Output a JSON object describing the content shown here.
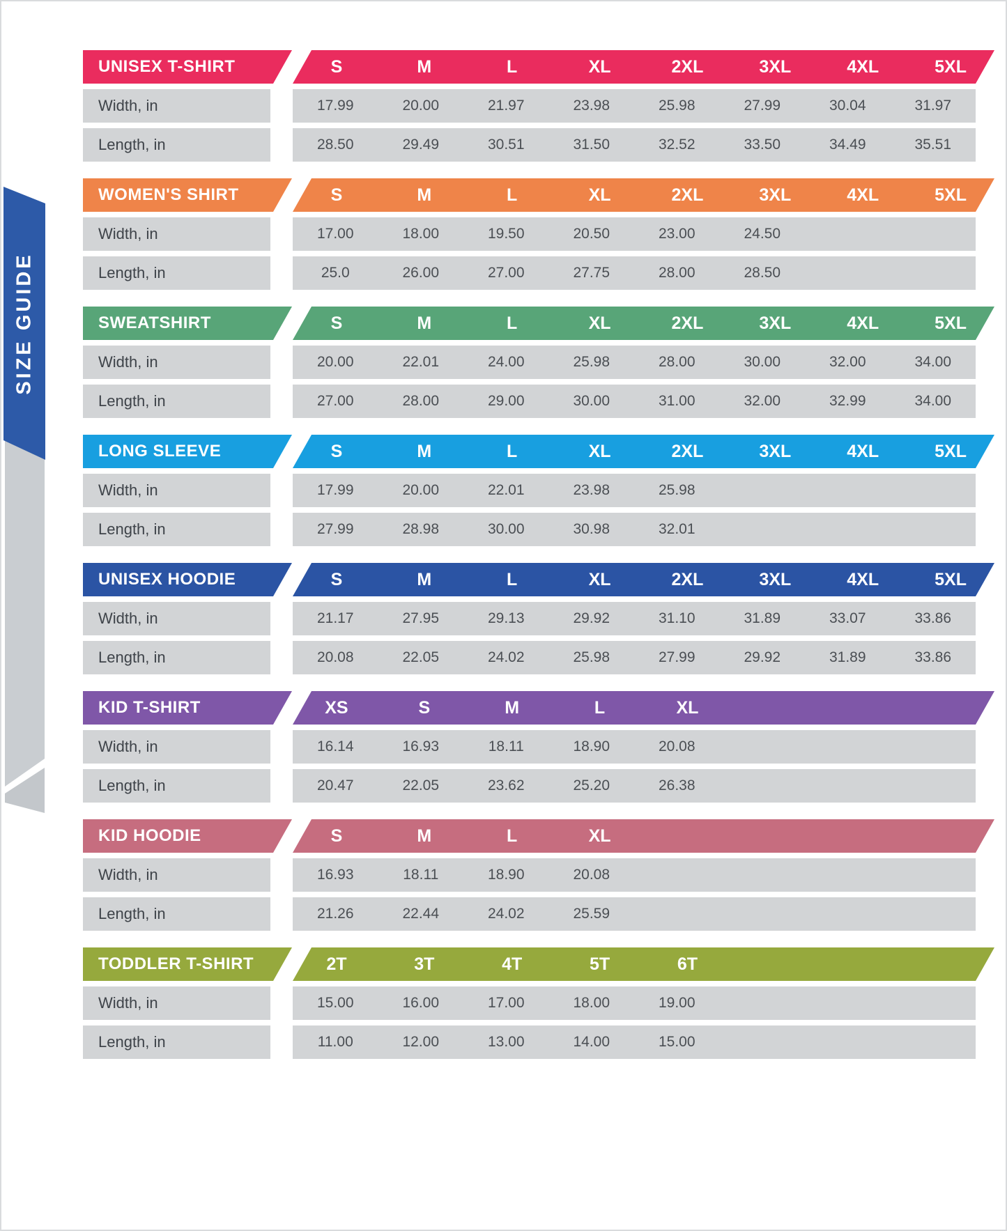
{
  "ribbon": {
    "label": "SIZE GUIDE",
    "color": "#2d5aa8"
  },
  "row_labels": {
    "width": "Width, in",
    "length": "Length, in"
  },
  "chart_data": {
    "type": "table",
    "tables": [
      {
        "name": "UNISEX T-SHIRT",
        "color": "#ea2c5e",
        "sizes": [
          "S",
          "M",
          "L",
          "XL",
          "2XL",
          "3XL",
          "4XL",
          "5XL"
        ],
        "width_in": [
          "17.99",
          "20.00",
          "21.97",
          "23.98",
          "25.98",
          "27.99",
          "30.04",
          "31.97"
        ],
        "length_in": [
          "28.50",
          "29.49",
          "30.51",
          "31.50",
          "32.52",
          "33.50",
          "34.49",
          "35.51"
        ]
      },
      {
        "name": "WOMEN'S SHIRT",
        "color": "#ef8449",
        "sizes": [
          "S",
          "M",
          "L",
          "XL",
          "2XL",
          "3XL",
          "4XL",
          "5XL"
        ],
        "width_in": [
          "17.00",
          "18.00",
          "19.50",
          "20.50",
          "23.00",
          "24.50"
        ],
        "length_in": [
          "25.0",
          "26.00",
          "27.00",
          "27.75",
          "28.00",
          "28.50"
        ]
      },
      {
        "name": "SWEATSHIRT",
        "color": "#58a578",
        "sizes": [
          "S",
          "M",
          "L",
          "XL",
          "2XL",
          "3XL",
          "4XL",
          "5XL"
        ],
        "width_in": [
          "20.00",
          "22.01",
          "24.00",
          "25.98",
          "28.00",
          "30.00",
          "32.00",
          "34.00"
        ],
        "length_in": [
          "27.00",
          "28.00",
          "29.00",
          "30.00",
          "31.00",
          "32.00",
          "32.99",
          "34.00"
        ]
      },
      {
        "name": "LONG SLEEVE",
        "color": "#189fe0",
        "sizes": [
          "S",
          "M",
          "L",
          "XL",
          "2XL",
          "3XL",
          "4XL",
          "5XL"
        ],
        "width_in": [
          "17.99",
          "20.00",
          "22.01",
          "23.98",
          "25.98"
        ],
        "length_in": [
          "27.99",
          "28.98",
          "30.00",
          "30.98",
          "32.01"
        ]
      },
      {
        "name": "UNISEX HOODIE",
        "color": "#2b54a4",
        "sizes": [
          "S",
          "M",
          "L",
          "XL",
          "2XL",
          "3XL",
          "4XL",
          "5XL"
        ],
        "width_in": [
          "21.17",
          "27.95",
          "29.13",
          "29.92",
          "31.10",
          "31.89",
          "33.07",
          "33.86"
        ],
        "length_in": [
          "20.08",
          "22.05",
          "24.02",
          "25.98",
          "27.99",
          "29.92",
          "31.89",
          "33.86"
        ]
      },
      {
        "name": "KID T-SHIRT",
        "color": "#7f57a8",
        "sizes": [
          "XS",
          "S",
          "M",
          "L",
          "XL"
        ],
        "width_in": [
          "16.14",
          "16.93",
          "18.11",
          "18.90",
          "20.08"
        ],
        "length_in": [
          "20.47",
          "22.05",
          "23.62",
          "25.20",
          "26.38"
        ]
      },
      {
        "name": "KID HOODIE",
        "color": "#c66d7f",
        "sizes": [
          "S",
          "M",
          "L",
          "XL"
        ],
        "width_in": [
          "16.93",
          "18.11",
          "18.90",
          "20.08"
        ],
        "length_in": [
          "21.26",
          "22.44",
          "24.02",
          "25.59"
        ]
      },
      {
        "name": "TODDLER T-SHIRT",
        "color": "#96a93d",
        "sizes": [
          "2T",
          "3T",
          "4T",
          "5T",
          "6T"
        ],
        "width_in": [
          "15.00",
          "16.00",
          "17.00",
          "18.00",
          "19.00"
        ],
        "length_in": [
          "11.00",
          "12.00",
          "13.00",
          "14.00",
          "15.00"
        ]
      }
    ]
  }
}
